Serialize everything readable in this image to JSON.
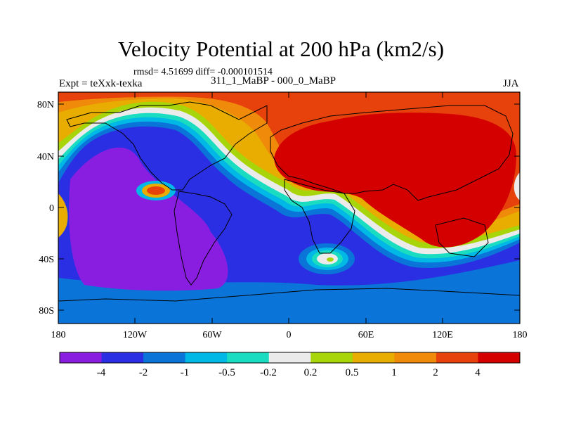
{
  "header": {
    "title": "Velocity Potential at 200 hPa (km2/s)",
    "stats": "rmsd= 4.51699 diff= -0.000101514",
    "experiment": "Expt = teXxk-texka",
    "difference": "311_1_MaBP - 000_0_MaBP",
    "season": "JJA"
  },
  "axes": {
    "y_ticks": [
      "80N",
      "40N",
      "0",
      "40S",
      "80S"
    ],
    "x_ticks": [
      "180",
      "120W",
      "60W",
      "0",
      "60E",
      "120E",
      "180"
    ]
  },
  "colorbar": {
    "labels": [
      "-4",
      "-2",
      "-1",
      "-0.5",
      "-0.2",
      "0.2",
      "0.5",
      "1",
      "2",
      "4"
    ],
    "colors": [
      "#8a1ee0",
      "#2b2fe3",
      "#0a74d9",
      "#00b8e6",
      "#19dcc0",
      "#ebebeb",
      "#a8d40a",
      "#e8ad00",
      "#f08a0a",
      "#e8420c",
      "#d40000"
    ]
  }
}
